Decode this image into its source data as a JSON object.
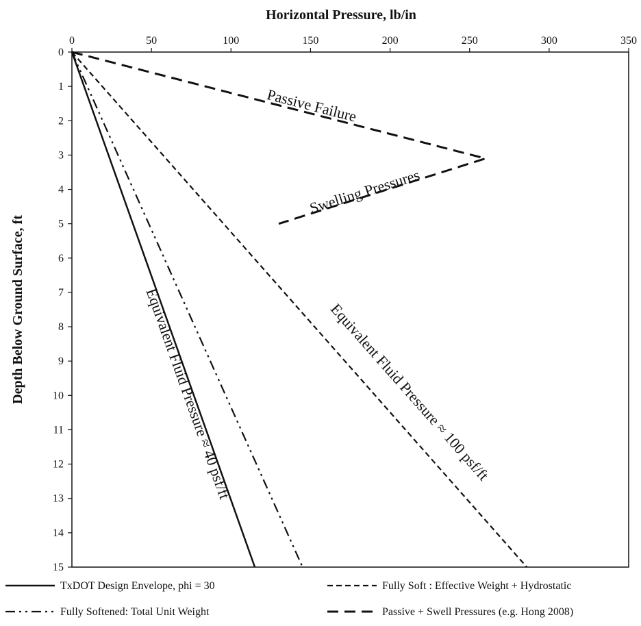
{
  "chart_data": {
    "type": "line",
    "title": "",
    "xlabel": "Horizontal Pressure, lb/in",
    "ylabel": "Depth Below Ground Surface, ft",
    "xlim": [
      0,
      350
    ],
    "ylim": [
      0,
      15
    ],
    "y_inverted": true,
    "x_axis_position": "top",
    "x_ticks": [
      0,
      50,
      100,
      150,
      200,
      250,
      300,
      350
    ],
    "y_ticks": [
      0,
      1,
      2,
      3,
      4,
      5,
      6,
      7,
      8,
      9,
      10,
      11,
      12,
      13,
      14,
      15
    ],
    "grid": false,
    "legend_position": "bottom",
    "series": [
      {
        "name": "TxDOT Design Envelope, phi = 30",
        "style": "solid",
        "color": "#111111",
        "points": [
          [
            0,
            0
          ],
          [
            115,
            15
          ]
        ]
      },
      {
        "name": "Fully Softened: Total Unit Weight",
        "style": "dash-dot-dot",
        "color": "#111111",
        "points": [
          [
            0,
            0
          ],
          [
            145,
            15
          ]
        ]
      },
      {
        "name": "Fully Soft : Effective Weight + Hydrostatic",
        "style": "dashed-short",
        "color": "#111111",
        "points": [
          [
            0,
            0
          ],
          [
            286,
            15
          ]
        ]
      },
      {
        "name": "Passive  + Swell Pressures (e.g. Hong 2008)",
        "style": "dashed-long",
        "color": "#111111",
        "points": [
          [
            0,
            0
          ],
          [
            260,
            3.1
          ],
          [
            130,
            5
          ]
        ]
      }
    ],
    "annotations": [
      {
        "text": "Passive Failure",
        "x": 150,
        "y": 1.7
      },
      {
        "text": "Swelling Pressures",
        "x": 185,
        "y": 4.2
      },
      {
        "text": "Equivalent Fluid Pressure ≈ 40 psf/ft",
        "x": 70,
        "y": 10
      },
      {
        "text": "Equivalent Fluid Pressure ≈ 100 psf/ft",
        "x": 210,
        "y": 10
      }
    ]
  }
}
